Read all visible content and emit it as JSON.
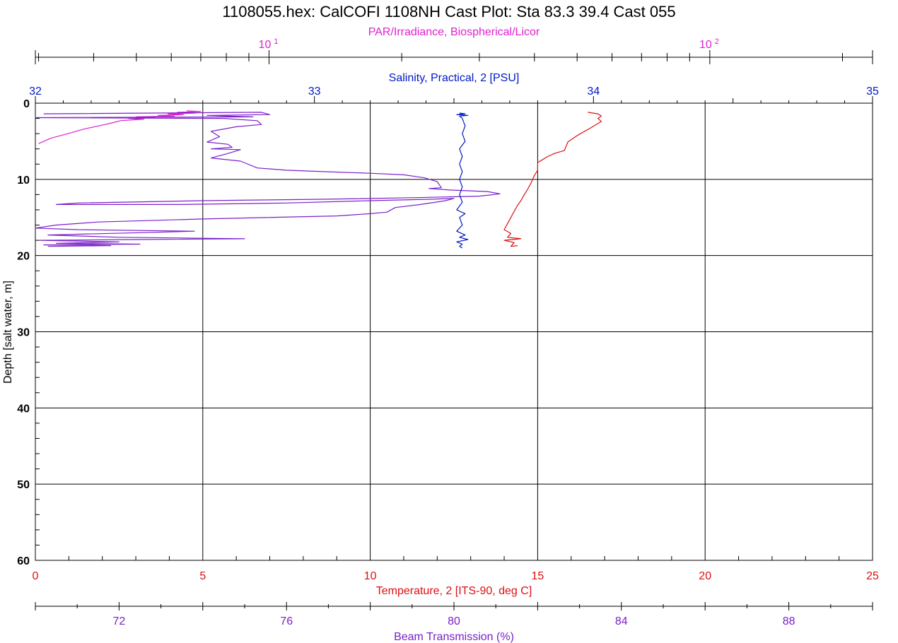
{
  "chart_data": {
    "type": "line",
    "title": "1108055.hex: CalCOFI 1108NH Cast Plot:  Sta 83.3 39.4 Cast 055",
    "colors": {
      "par": "#e020d0",
      "salinity": "#0018c8",
      "temperature": "#dd1010",
      "transmission": "#7a20c8",
      "grid": "#000000"
    },
    "y_axis": {
      "label": "Depth [salt water, m]",
      "range": [
        0,
        60
      ],
      "ticks": [
        "0",
        "10",
        "20",
        "30",
        "40",
        "50",
        "60"
      ]
    },
    "axes": {
      "par": {
        "label": "PAR/Irradiance, Biospherical/Licor",
        "scale": "log",
        "range": [
          2.95,
          234.0
        ],
        "tick_base": "10",
        "tick_exponents": [
          "1",
          "2"
        ]
      },
      "salinity": {
        "label": "Salinity, Practical, 2 [PSU]",
        "range": [
          32,
          35
        ],
        "ticks": [
          "32",
          "33",
          "34",
          "35"
        ]
      },
      "temperature": {
        "label": "Temperature, 2 [ITS-90, deg C]",
        "range": [
          0,
          25
        ],
        "ticks": [
          "0",
          "5",
          "10",
          "15",
          "20",
          "25"
        ]
      },
      "transmission": {
        "label": "Beam Transmission (%)",
        "range": [
          70,
          90
        ],
        "ticks": [
          "72",
          "76",
          "80",
          "84",
          "88"
        ]
      }
    },
    "series": [
      {
        "name": "PAR/Irradiance, Biospherical/Licor",
        "axis": "par",
        "points": [
          [
            6.5,
            1.0
          ],
          [
            7.0,
            1.1
          ],
          [
            6.2,
            1.2
          ],
          [
            6.8,
            1.3
          ],
          [
            5.9,
            1.4
          ],
          [
            6.4,
            1.5
          ],
          [
            5.6,
            1.6
          ],
          [
            6.1,
            1.7
          ],
          [
            5.0,
            1.8
          ],
          [
            5.5,
            1.9
          ],
          [
            4.8,
            2.0
          ],
          [
            5.2,
            2.1
          ],
          [
            4.6,
            2.3
          ],
          [
            4.4,
            2.6
          ],
          [
            4.1,
            3.0
          ],
          [
            3.8,
            3.4
          ],
          [
            3.5,
            4.0
          ],
          [
            3.2,
            4.6
          ],
          [
            3.0,
            5.3
          ]
        ]
      },
      {
        "name": "Beam Transmission (%)",
        "axis": "transmission",
        "points": [
          [
            70.2,
            1.4
          ],
          [
            75.4,
            1.2
          ],
          [
            75.6,
            1.5
          ],
          [
            74.1,
            1.6
          ],
          [
            75.2,
            1.8
          ],
          [
            70.0,
            1.9
          ],
          [
            74.5,
            2.0
          ],
          [
            75.3,
            2.3
          ],
          [
            75.4,
            2.8
          ],
          [
            74.8,
            3.1
          ],
          [
            74.2,
            3.7
          ],
          [
            74.4,
            4.4
          ],
          [
            74.1,
            5.1
          ],
          [
            74.6,
            5.4
          ],
          [
            74.7,
            5.8
          ],
          [
            74.2,
            6.0
          ],
          [
            74.9,
            6.1
          ],
          [
            74.6,
            6.6
          ],
          [
            74.2,
            7.2
          ],
          [
            74.9,
            7.6
          ],
          [
            75.3,
            8.5
          ],
          [
            76.0,
            8.8
          ],
          [
            77.0,
            9.0
          ],
          [
            78.0,
            9.2
          ],
          [
            78.8,
            9.4
          ],
          [
            79.3,
            9.8
          ],
          [
            79.6,
            10.3
          ],
          [
            79.7,
            11.1
          ],
          [
            79.4,
            11.2
          ],
          [
            79.9,
            11.4
          ],
          [
            80.8,
            11.6
          ],
          [
            81.1,
            11.9
          ],
          [
            80.6,
            12.2
          ],
          [
            79.1,
            12.4
          ],
          [
            77.0,
            12.6
          ],
          [
            74.0,
            12.8
          ],
          [
            71.0,
            13.1
          ],
          [
            70.5,
            13.3
          ],
          [
            73.5,
            13.3
          ],
          [
            76.0,
            13.1
          ],
          [
            78.0,
            12.8
          ],
          [
            79.5,
            12.6
          ],
          [
            80.0,
            12.5
          ],
          [
            79.8,
            12.8
          ],
          [
            79.2,
            13.3
          ],
          [
            78.6,
            13.7
          ],
          [
            78.4,
            14.3
          ],
          [
            78.0,
            14.5
          ],
          [
            77.2,
            14.8
          ],
          [
            74.0,
            15.2
          ],
          [
            71.5,
            15.6
          ],
          [
            70.5,
            16.0
          ],
          [
            70.0,
            16.4
          ],
          [
            71.0,
            16.6
          ],
          [
            73.8,
            16.8
          ],
          [
            72.5,
            17.0
          ],
          [
            71.0,
            17.2
          ],
          [
            70.3,
            17.3
          ],
          [
            72.0,
            17.6
          ],
          [
            75.0,
            17.8
          ],
          [
            72.5,
            17.9
          ],
          [
            70.1,
            18.0
          ],
          [
            72.0,
            18.2
          ],
          [
            70.5,
            18.4
          ],
          [
            72.5,
            18.5
          ],
          [
            70.2,
            18.6
          ],
          [
            71.8,
            18.7
          ],
          [
            70.3,
            18.8
          ]
        ]
      },
      {
        "name": "Salinity, Practical, 2 [PSU]",
        "axis": "salinity",
        "points": [
          [
            33.52,
            1.3
          ],
          [
            33.54,
            1.4
          ],
          [
            33.51,
            1.5
          ],
          [
            33.55,
            1.6
          ],
          [
            33.52,
            1.7
          ],
          [
            33.53,
            2.0
          ],
          [
            33.54,
            3.0
          ],
          [
            33.53,
            4.0
          ],
          [
            33.54,
            5.0
          ],
          [
            33.52,
            6.0
          ],
          [
            33.53,
            7.0
          ],
          [
            33.52,
            8.0
          ],
          [
            33.53,
            9.0
          ],
          [
            33.52,
            10.0
          ],
          [
            33.53,
            11.0
          ],
          [
            33.52,
            12.0
          ],
          [
            33.53,
            13.0
          ],
          [
            33.51,
            14.0
          ],
          [
            33.54,
            14.5
          ],
          [
            33.52,
            15.0
          ],
          [
            33.53,
            16.0
          ],
          [
            33.51,
            16.8
          ],
          [
            33.54,
            17.3
          ],
          [
            33.52,
            17.6
          ],
          [
            33.55,
            17.9
          ],
          [
            33.51,
            18.2
          ],
          [
            33.53,
            18.5
          ],
          [
            33.52,
            18.8
          ],
          [
            33.53,
            19.0
          ]
        ]
      },
      {
        "name": "Temperature, 2 [ITS-90, deg C]",
        "axis": "temperature",
        "points": [
          [
            16.5,
            1.2
          ],
          [
            16.8,
            1.4
          ],
          [
            16.9,
            1.7
          ],
          [
            16.8,
            2.0
          ],
          [
            16.9,
            2.4
          ],
          [
            16.6,
            3.2
          ],
          [
            16.2,
            4.2
          ],
          [
            15.9,
            5.1
          ],
          [
            15.8,
            6.2
          ],
          [
            15.5,
            6.6
          ],
          [
            15.3,
            7.0
          ],
          [
            15.0,
            7.8
          ],
          [
            15.0,
            8.8
          ],
          [
            14.9,
            9.5
          ],
          [
            14.8,
            10.5
          ],
          [
            14.7,
            11.3
          ],
          [
            14.6,
            12.0
          ],
          [
            14.5,
            12.8
          ],
          [
            14.4,
            13.4
          ],
          [
            14.3,
            14.2
          ],
          [
            14.2,
            15.0
          ],
          [
            14.1,
            15.8
          ],
          [
            14.0,
            16.6
          ],
          [
            14.2,
            17.1
          ],
          [
            14.1,
            17.6
          ],
          [
            14.5,
            17.8
          ],
          [
            14.0,
            18.0
          ],
          [
            14.3,
            18.3
          ],
          [
            14.2,
            18.8
          ],
          [
            14.4,
            18.7
          ]
        ]
      }
    ]
  }
}
